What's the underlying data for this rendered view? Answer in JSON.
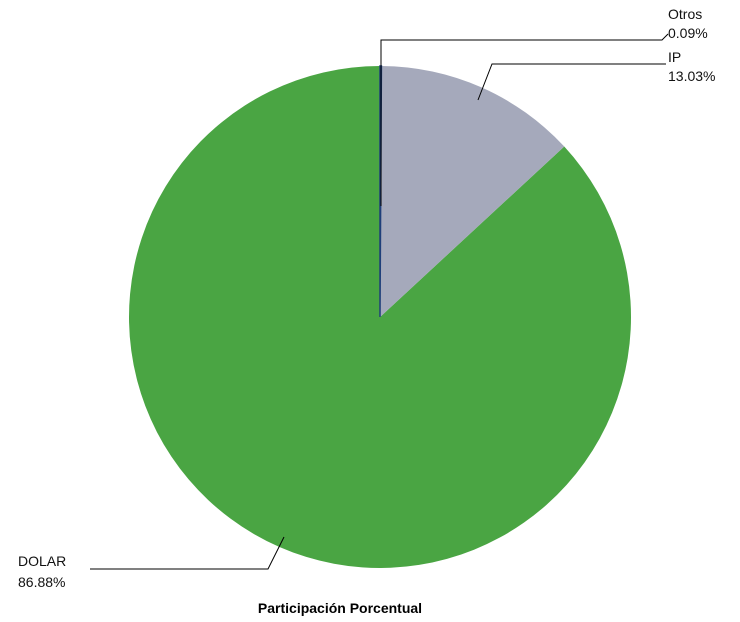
{
  "chart_data": {
    "type": "pie",
    "title": "Participación Porcentual",
    "start_angle_deg": 0,
    "direction": "clockwise",
    "slices": [
      {
        "name": "Otros",
        "value": 0.09,
        "label": "0.09%",
        "color": "#1f3f7a"
      },
      {
        "name": "IP",
        "value": 13.03,
        "label": "13.03%",
        "color": "#a5a9bb"
      },
      {
        "name": "DOLAR",
        "value": 86.88,
        "label": "86.88%",
        "color": "#4aa543"
      }
    ]
  }
}
